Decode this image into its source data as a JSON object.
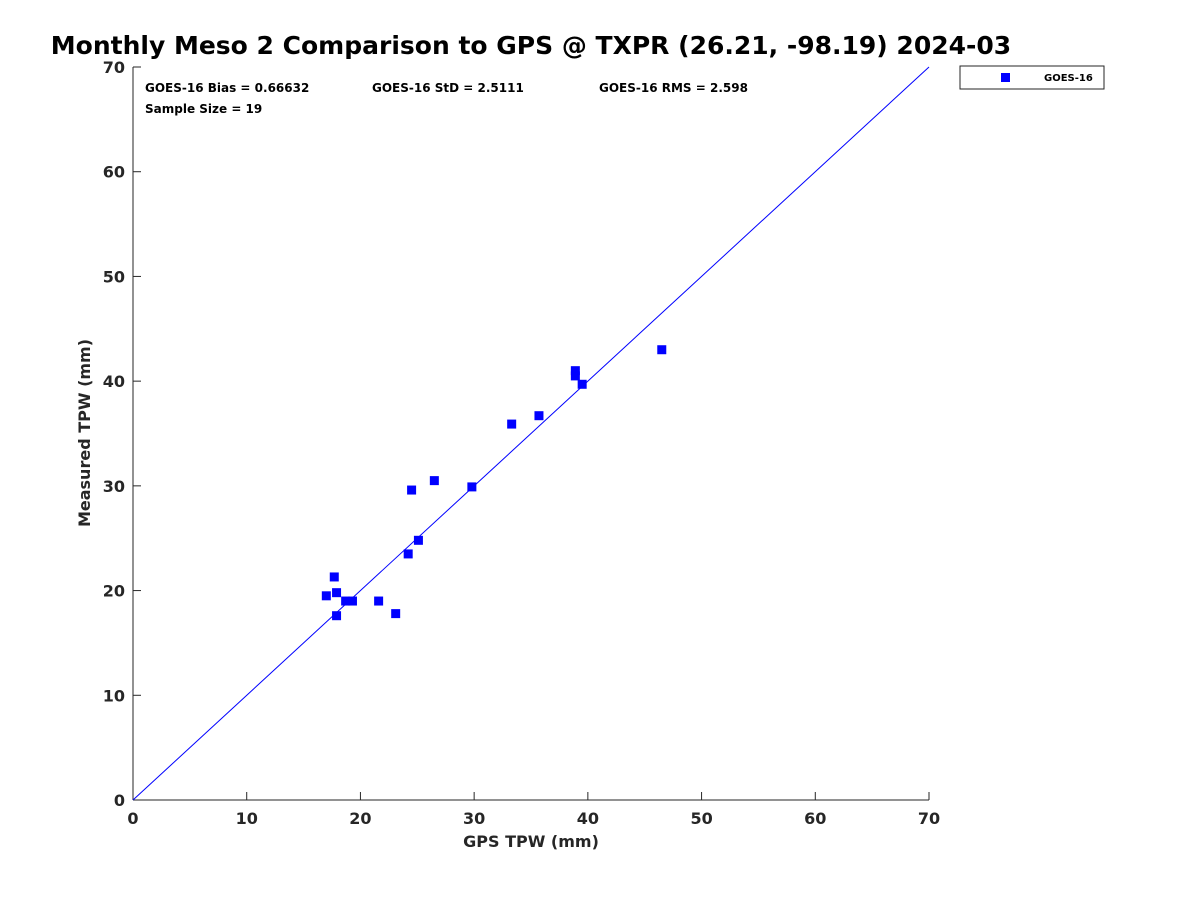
{
  "chart_data": {
    "type": "scatter",
    "title": "Monthly Meso 2 Comparison to GPS @ TXPR (26.21, -98.19) 2024-03",
    "xlabel": "GPS TPW (mm)",
    "ylabel": "Measured TPW (mm)",
    "xlim": [
      0,
      70
    ],
    "ylim": [
      0,
      70
    ],
    "xticks": [
      0,
      10,
      20,
      30,
      40,
      50,
      60,
      70
    ],
    "yticks": [
      0,
      10,
      20,
      30,
      40,
      50,
      60,
      70
    ],
    "grid": false,
    "legend_position": "top-right outside",
    "series": [
      {
        "name": "GOES-16",
        "color": "#0000ff",
        "marker": "square",
        "points": [
          [
            17.0,
            19.5
          ],
          [
            17.7,
            21.3
          ],
          [
            17.9,
            19.8
          ],
          [
            17.9,
            17.6
          ],
          [
            18.7,
            19.0
          ],
          [
            19.3,
            19.0
          ],
          [
            21.6,
            19.0
          ],
          [
            23.1,
            17.8
          ],
          [
            24.2,
            23.5
          ],
          [
            24.5,
            29.6
          ],
          [
            25.1,
            24.8
          ],
          [
            26.5,
            30.5
          ],
          [
            29.8,
            29.9
          ],
          [
            33.3,
            35.9
          ],
          [
            35.7,
            36.7
          ],
          [
            38.9,
            41.0
          ],
          [
            38.9,
            40.5
          ],
          [
            39.5,
            39.7
          ],
          [
            46.5,
            43.0
          ]
        ]
      }
    ],
    "reference_line": {
      "color": "#0000ff",
      "from": [
        0,
        0
      ],
      "to": [
        70,
        70
      ]
    },
    "annotations": {
      "bias": "GOES-16 Bias = 0.66632",
      "std": "GOES-16 StD = 2.5111",
      "rms": "GOES-16 RMS = 2.598",
      "sample_size": "Sample Size = 19"
    }
  }
}
